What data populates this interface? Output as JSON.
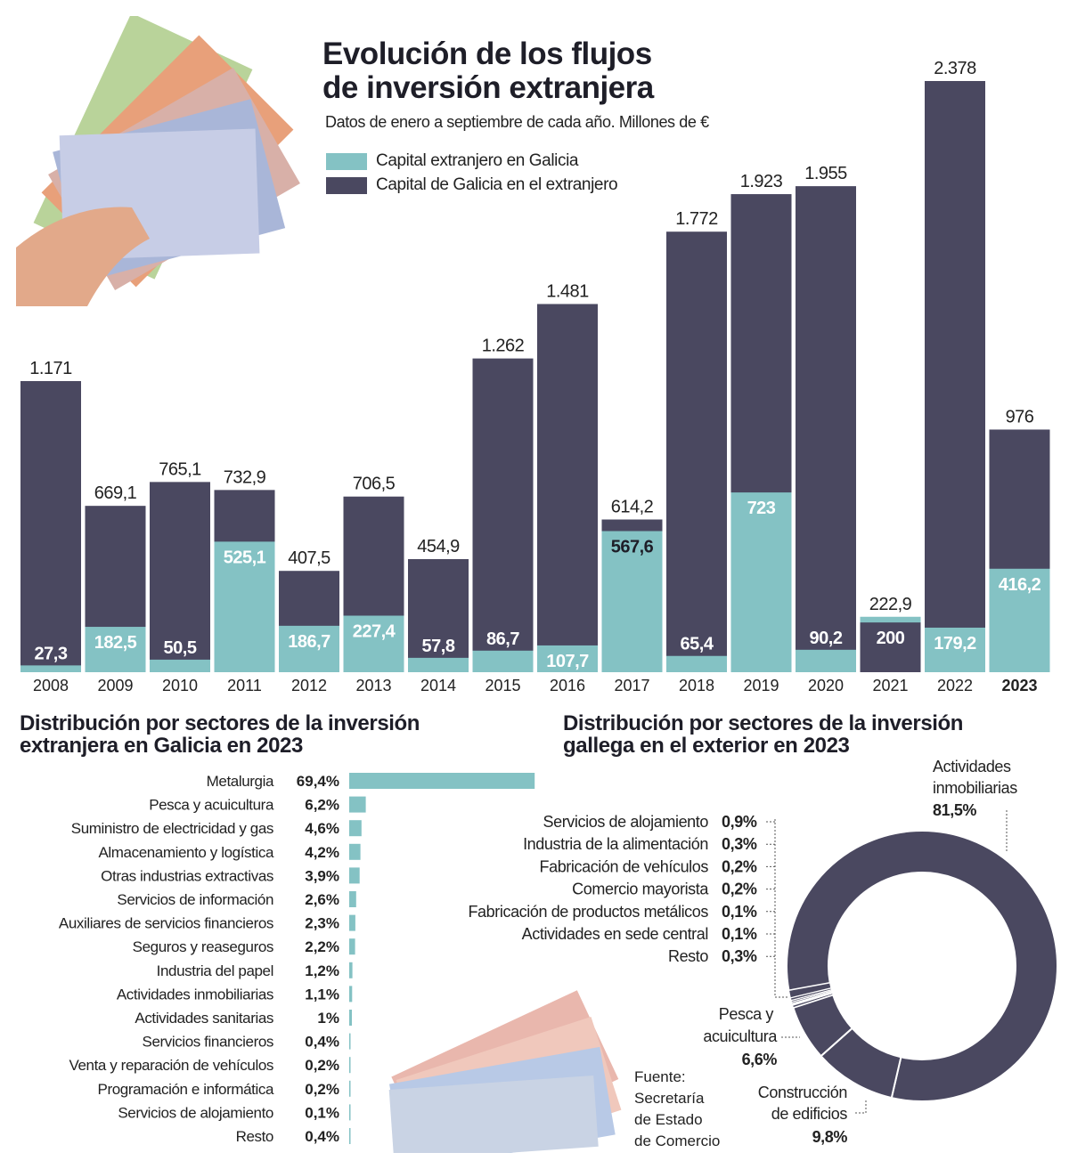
{
  "header": {
    "title_line1": "Evolución de los flujos",
    "title_line2": "de inversión extranjera",
    "subtitle": "Datos de enero a septiembre de cada año. Millones de €"
  },
  "colors": {
    "teal": "#84c2c4",
    "dark": "#4a4860"
  },
  "legend": [
    {
      "label": "Capital extranjero en Galicia",
      "color": "#84c2c4"
    },
    {
      "label": "Capital de Galicia en el extranjero",
      "color": "#4a4860"
    }
  ],
  "section2": {
    "title_line1": "Distribución por sectores de la inversión",
    "title_line2": "extranjera en Galicia en 2023"
  },
  "section3": {
    "title_line1": "Distribución por sectores de la inversión",
    "title_line2": "gallega en el exterior en 2023"
  },
  "source": {
    "line1": "Fuente:",
    "line2": "Secretaría",
    "line3": "de Estado",
    "line4": "de Comercio"
  },
  "chart_data": [
    {
      "type": "bar",
      "categories": [
        "2008",
        "2009",
        "2010",
        "2011",
        "2012",
        "2013",
        "2014",
        "2015",
        "2016",
        "2017",
        "2018",
        "2019",
        "2020",
        "2021",
        "2022",
        "2023"
      ],
      "series": [
        {
          "name": "Capital extranjero en Galicia",
          "values": [
            27.3,
            182.5,
            50.5,
            525.1,
            186.7,
            227.4,
            57.8,
            86.7,
            107.7,
            567.6,
            65.4,
            723,
            90.2,
            222.9,
            179.2,
            416.2
          ],
          "labels": [
            "27,3",
            "182,5",
            "50,5",
            "525,1",
            "186,7",
            "227,4",
            "57,8",
            "86,7",
            "107,7",
            "567,6",
            "65,4",
            "723",
            "90,2",
            "222,9",
            "179,2",
            "416,2"
          ]
        },
        {
          "name": "Capital de Galicia en el extranjero",
          "values": [
            1171,
            669.1,
            765.1,
            732.9,
            407.5,
            706.5,
            454.9,
            1262,
            1481,
            614.2,
            1772,
            1923,
            1955,
            200,
            2378,
            976
          ],
          "labels": [
            "1.171",
            "669,1",
            "765,1",
            "732,9",
            "407,5",
            "706,5",
            "454,9",
            "1.262",
            "1.481",
            "614,2",
            "1.772",
            "1.923",
            "1.955",
            "200",
            "2.378",
            "976"
          ]
        }
      ],
      "ylim": [
        0,
        2378
      ]
    },
    {
      "type": "bar",
      "orientation": "horizontal",
      "categories": [
        "Metalurgia",
        "Pesca y acuicultura",
        "Suministro de electricidad y gas",
        "Almacenamiento y logística",
        "Otras industrias extractivas",
        "Servicios de información",
        "Auxiliares de servicios financieros",
        "Seguros y reaseguros",
        "Industria del papel",
        "Actividades inmobiliarias",
        "Actividades sanitarias",
        "Servicios financieros",
        "Venta y reparación de vehículos",
        "Programación e informática",
        "Servicios de alojamiento",
        "Resto"
      ],
      "values": [
        69.4,
        6.2,
        4.6,
        4.2,
        3.9,
        2.6,
        2.3,
        2.2,
        1.2,
        1.1,
        1,
        0.4,
        0.2,
        0.2,
        0.1,
        0.4
      ],
      "labels": [
        "69,4%",
        "6,2%",
        "4,6%",
        "4,2%",
        "3,9%",
        "2,6%",
        "2,3%",
        "2,2%",
        "1,2%",
        "1,1%",
        "1%",
        "0,4%",
        "0,2%",
        "0,2%",
        "0,1%",
        "0,4%"
      ]
    },
    {
      "type": "pie",
      "donut": true,
      "categories": [
        "Actividades inmobiliarias",
        "Construcción de edificios",
        "Pesca y acuicultura",
        "Servicios de alojamiento",
        "Industria de la alimentación",
        "Fabricación de vehículos",
        "Comercio mayorista",
        "Fabricación de productos metálicos",
        "Actividades en sede central",
        "Resto"
      ],
      "values": [
        81.5,
        9.8,
        6.6,
        0.9,
        0.3,
        0.2,
        0.2,
        0.1,
        0.1,
        0.3
      ],
      "labels": [
        "81,5%",
        "9,8%",
        "6,6%",
        "0,9%",
        "0,3%",
        "0,2%",
        "0,2%",
        "0,1%",
        "0,1%",
        "0,3%"
      ],
      "big_label_lines": {
        "inmob": [
          "Actividades",
          "inmobiliarias"
        ],
        "constr": [
          "Construcción",
          "de edificios"
        ],
        "pesca": [
          "Pesca y",
          "acuicultura"
        ]
      }
    }
  ]
}
